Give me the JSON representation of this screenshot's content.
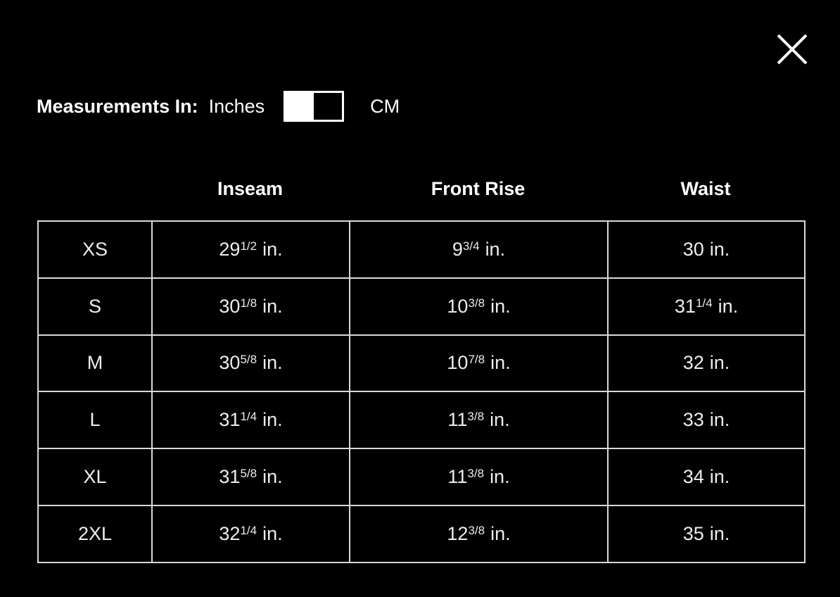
{
  "colors": {
    "background": "#000000",
    "text": "#ffffff",
    "table_border": "#d9d9d9"
  },
  "modal": {
    "close_icon": "x"
  },
  "measurements": {
    "label": "Measurements In:",
    "options": [
      {
        "label": "Inches",
        "selected": true
      },
      {
        "label": "CM",
        "selected": false
      }
    ]
  },
  "table": {
    "columns": [
      "",
      "Inseam",
      "Front Rise",
      "Waist"
    ],
    "rows": [
      {
        "size": "XS",
        "inseam": {
          "whole": "29",
          "frac": "1/2",
          "unit": "in."
        },
        "front_rise": {
          "whole": "9",
          "frac": "3/4",
          "unit": "in."
        },
        "waist": {
          "whole": "30",
          "frac": "",
          "unit": "in."
        }
      },
      {
        "size": "S",
        "inseam": {
          "whole": "30",
          "frac": "1/8",
          "unit": "in."
        },
        "front_rise": {
          "whole": "10",
          "frac": "3/8",
          "unit": "in."
        },
        "waist": {
          "whole": "31",
          "frac": "1/4",
          "unit": "in."
        }
      },
      {
        "size": "M",
        "inseam": {
          "whole": "30",
          "frac": "5/8",
          "unit": "in."
        },
        "front_rise": {
          "whole": "10",
          "frac": "7/8",
          "unit": "in."
        },
        "waist": {
          "whole": "32",
          "frac": "",
          "unit": "in."
        }
      },
      {
        "size": "L",
        "inseam": {
          "whole": "31",
          "frac": "1/4",
          "unit": "in."
        },
        "front_rise": {
          "whole": "11",
          "frac": "3/8",
          "unit": "in."
        },
        "waist": {
          "whole": "33",
          "frac": "",
          "unit": "in."
        }
      },
      {
        "size": "XL",
        "inseam": {
          "whole": "31",
          "frac": "5/8",
          "unit": "in."
        },
        "front_rise": {
          "whole": "11",
          "frac": "3/8",
          "unit": "in."
        },
        "waist": {
          "whole": "34",
          "frac": "",
          "unit": "in."
        }
      },
      {
        "size": "2XL",
        "inseam": {
          "whole": "32",
          "frac": "1/4",
          "unit": "in."
        },
        "front_rise": {
          "whole": "12",
          "frac": "3/8",
          "unit": "in."
        },
        "waist": {
          "whole": "35",
          "frac": "",
          "unit": "in."
        }
      }
    ]
  }
}
